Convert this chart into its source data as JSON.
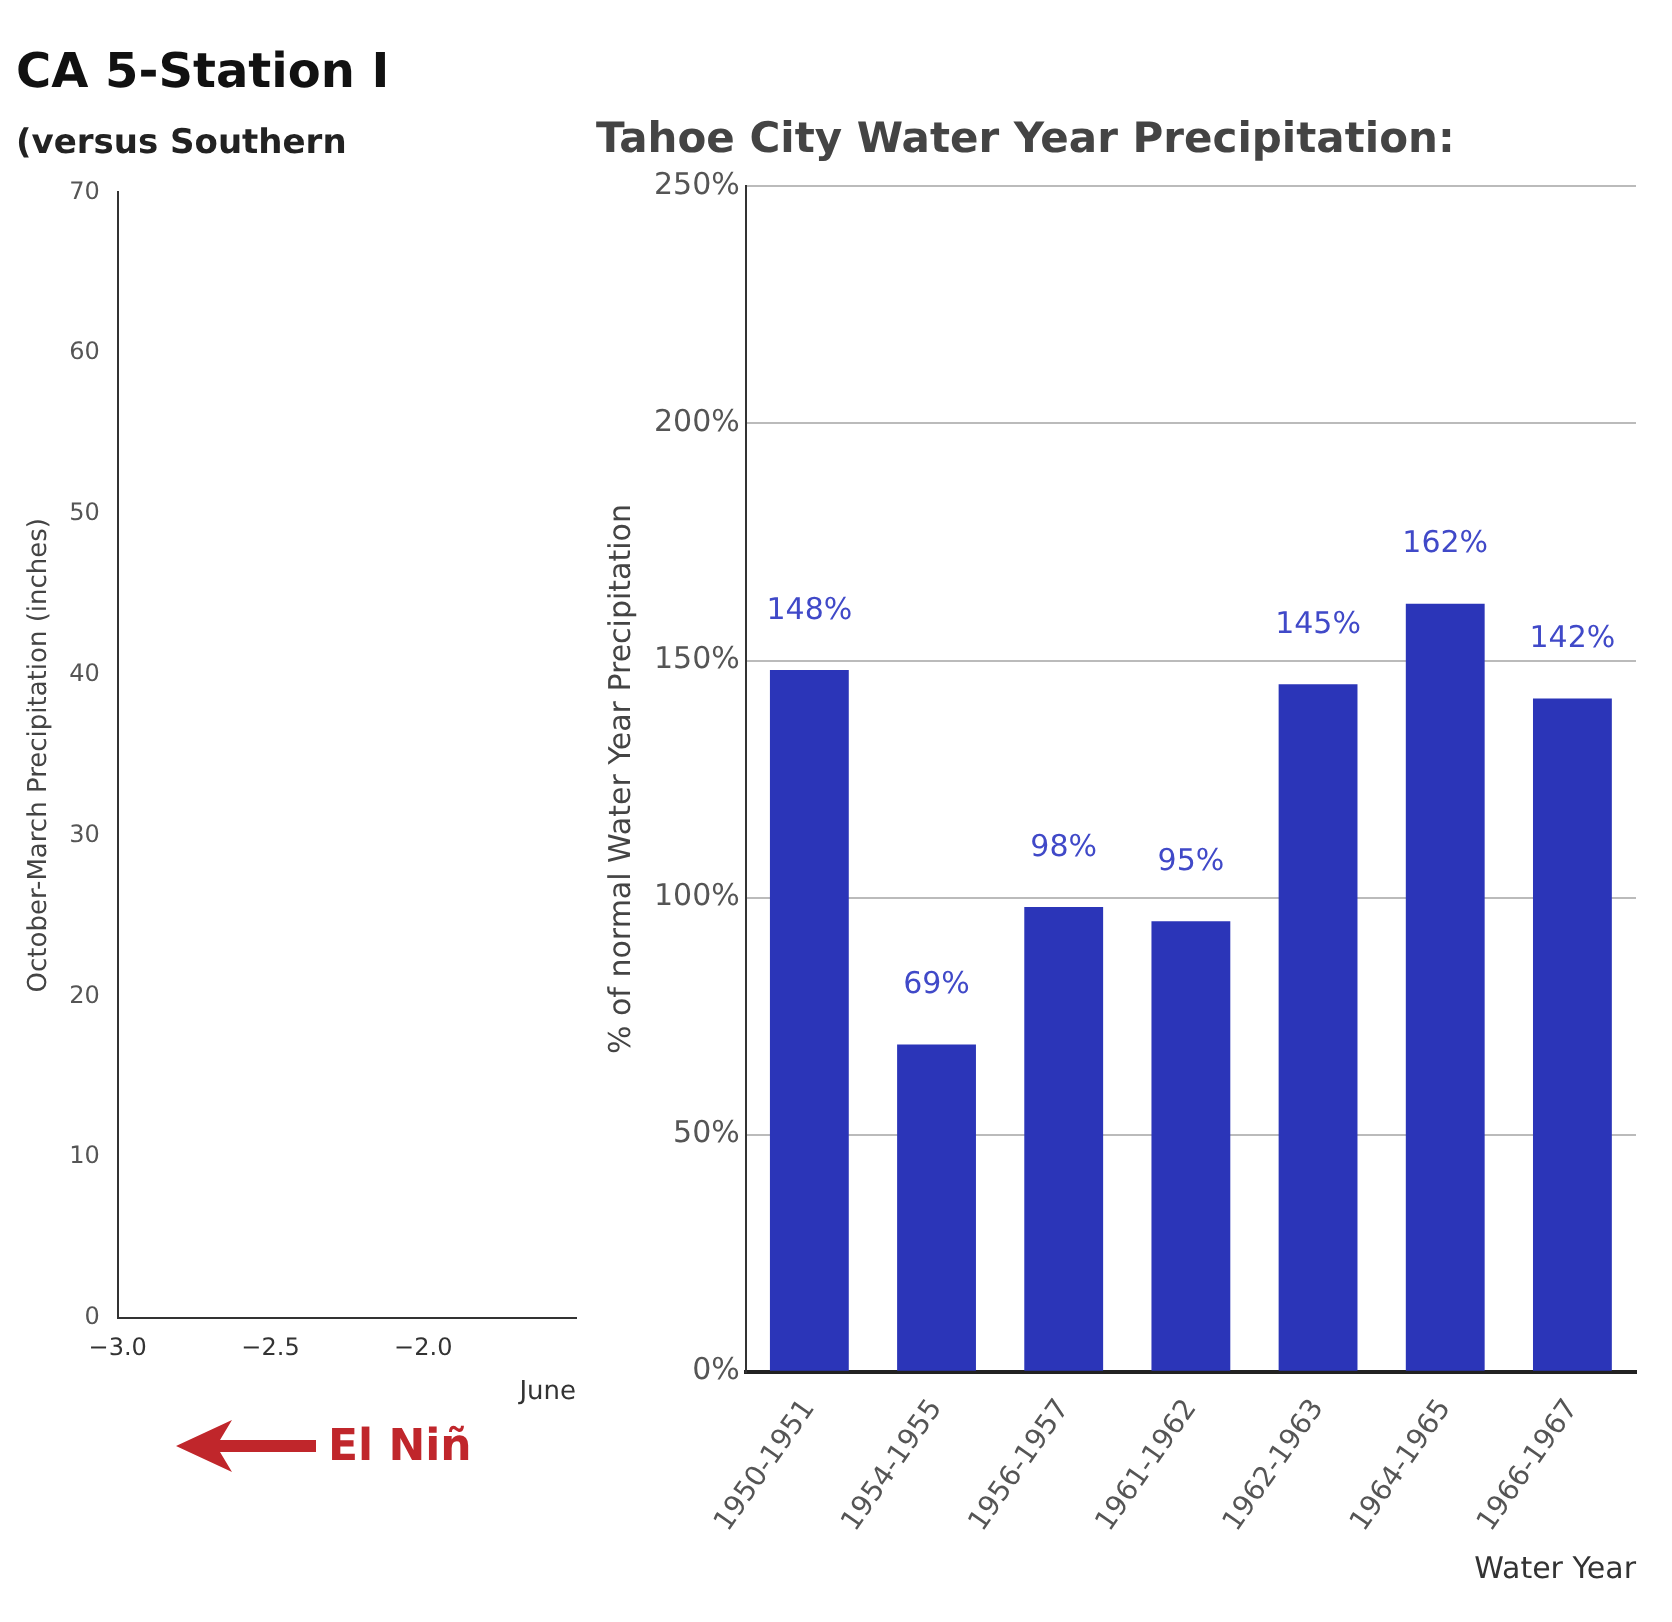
{
  "chart_data": [
    {
      "type": "scatter",
      "title": "CA 5-Station I",
      "subtitle": "(versus Southern",
      "xlabel": "June",
      "ylabel": "October-March Precipitation (inches)",
      "annotations": [
        "El Niñ"
      ],
      "color": "#222222",
      "xlim": [
        -3,
        -1.5
      ],
      "xticks": [
        {
          "value": -3,
          "label": "−3.0"
        },
        {
          "value": -2.5,
          "label": "−2.5"
        },
        {
          "value": -2,
          "label": "−2.0"
        }
      ],
      "ylim": [
        0,
        70
      ],
      "yticks": [
        0,
        10,
        20,
        30,
        40,
        50,
        60,
        70
      ],
      "grid": false,
      "legend": false
    },
    {
      "type": "bar",
      "title": "Tahoe City Water Year Precipitation:",
      "xlabel": "Water Year",
      "ylabel": "% of normal Water Year Precipitation",
      "categories": [
        "1950-1951",
        "1954-1955",
        "1956-1957",
        "1961-1962",
        "1962-1963",
        "1964-1965",
        "1966-1967"
      ],
      "values": [
        148,
        69,
        98,
        95,
        145,
        162,
        142
      ],
      "value_labels": [
        "148%",
        "69%",
        "98%",
        "95%",
        "145%",
        "162%",
        "142%"
      ],
      "color": "#2b35b8",
      "ylim": [
        0,
        250
      ],
      "yticks": [
        {
          "value": 0,
          "label": "0%"
        },
        {
          "value": 50,
          "label": "50%"
        },
        {
          "value": 100,
          "label": "100%"
        },
        {
          "value": 150,
          "label": "150%"
        },
        {
          "value": 200,
          "label": "200%"
        },
        {
          "value": 250,
          "label": "250%"
        }
      ],
      "grid": "y",
      "legend": false
    }
  ]
}
